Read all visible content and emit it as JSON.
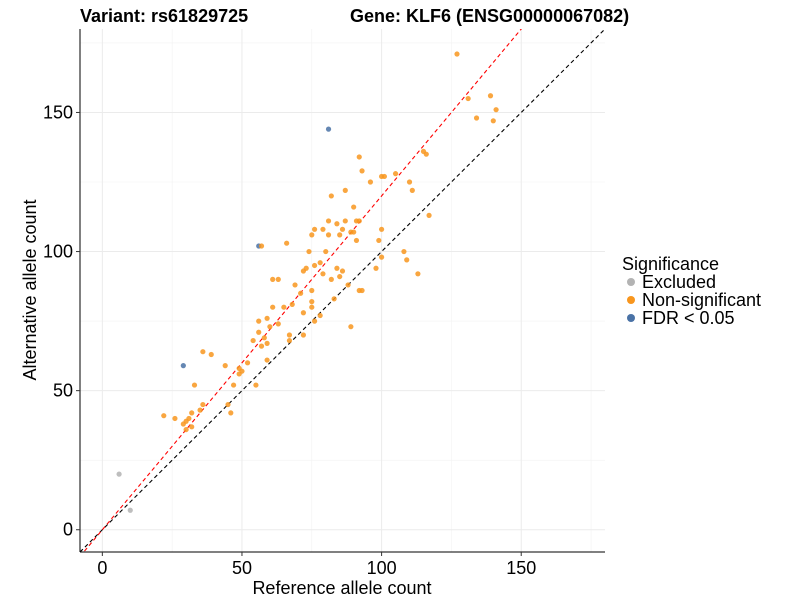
{
  "chart_data": {
    "type": "scatter",
    "title_left": "Variant: rs61829725",
    "title_right": "Gene: KLF6 (ENSG00000067082)",
    "xlabel": "Reference allele count",
    "ylabel": "Alternative allele count",
    "xlim": [
      -8,
      180
    ],
    "ylim": [
      -8,
      180
    ],
    "xticks": [
      0,
      50,
      100,
      150
    ],
    "yticks": [
      0,
      50,
      100,
      150
    ],
    "xtick_labels": [
      "0",
      "50",
      "100",
      "150"
    ],
    "ytick_labels": [
      "0",
      "50",
      "100",
      "150"
    ],
    "grid": true,
    "lines": [
      {
        "name": "identity",
        "slope": 1,
        "intercept": 0,
        "color": "#000000",
        "dash": true
      },
      {
        "name": "fit",
        "slope": 1.2,
        "intercept": 0,
        "color": "#ff0000",
        "dash": true
      }
    ],
    "legend": {
      "title": "Significance",
      "position": "right",
      "entries": [
        {
          "label": "Excluded",
          "color": "#b3b3b3"
        },
        {
          "label": "Non-significant",
          "color": "#f8961e"
        },
        {
          "label": "FDR < 0.05",
          "color": "#4a72a6"
        }
      ]
    },
    "series": [
      {
        "name": "Excluded",
        "color": "#b3b3b3",
        "points": [
          [
            6,
            20
          ],
          [
            10,
            7
          ]
        ]
      },
      {
        "name": "FDR < 0.05",
        "color": "#4a72a6",
        "points": [
          [
            81,
            144
          ],
          [
            56,
            102
          ],
          [
            29,
            59
          ]
        ]
      },
      {
        "name": "Non-significant",
        "color": "#f8961e",
        "points": [
          [
            127,
            171
          ],
          [
            131,
            155
          ],
          [
            139,
            156
          ],
          [
            134,
            148
          ],
          [
            140,
            147
          ],
          [
            141,
            151
          ],
          [
            115,
            136
          ],
          [
            116,
            135
          ],
          [
            92,
            134
          ],
          [
            93,
            129
          ],
          [
            105,
            128
          ],
          [
            100,
            127
          ],
          [
            101,
            127
          ],
          [
            96,
            125
          ],
          [
            110,
            125
          ],
          [
            111,
            122
          ],
          [
            87,
            122
          ],
          [
            82,
            120
          ],
          [
            90,
            116
          ],
          [
            117,
            113
          ],
          [
            81,
            111
          ],
          [
            87,
            111
          ],
          [
            91,
            111
          ],
          [
            92,
            111
          ],
          [
            84,
            110
          ],
          [
            100,
            108
          ],
          [
            76,
            108
          ],
          [
            79,
            108
          ],
          [
            86,
            108
          ],
          [
            75,
            106
          ],
          [
            85,
            106
          ],
          [
            89,
            107
          ],
          [
            90,
            107
          ],
          [
            81,
            106
          ],
          [
            91,
            104
          ],
          [
            99,
            104
          ],
          [
            108,
            100
          ],
          [
            66,
            103
          ],
          [
            57,
            102
          ],
          [
            74,
            100
          ],
          [
            80,
            100
          ],
          [
            78,
            96
          ],
          [
            100,
            98
          ],
          [
            109,
            97
          ],
          [
            76,
            95
          ],
          [
            73,
            94
          ],
          [
            84,
            94
          ],
          [
            86,
            93
          ],
          [
            98,
            94
          ],
          [
            72,
            93
          ],
          [
            85,
            91
          ],
          [
            113,
            92
          ],
          [
            61,
            90
          ],
          [
            63,
            90
          ],
          [
            79,
            92
          ],
          [
            82,
            90
          ],
          [
            69,
            88
          ],
          [
            88,
            88
          ],
          [
            75,
            86
          ],
          [
            71,
            85
          ],
          [
            92,
            86
          ],
          [
            93,
            86
          ],
          [
            83,
            83
          ],
          [
            75,
            82
          ],
          [
            68,
            81
          ],
          [
            61,
            80
          ],
          [
            65,
            80
          ],
          [
            75,
            80
          ],
          [
            72,
            78
          ],
          [
            78,
            77
          ],
          [
            59,
            76
          ],
          [
            56,
            75
          ],
          [
            63,
            74
          ],
          [
            76,
            75
          ],
          [
            60,
            73
          ],
          [
            56,
            71
          ],
          [
            67,
            70
          ],
          [
            72,
            70
          ],
          [
            89,
            73
          ],
          [
            58,
            69
          ],
          [
            54,
            68
          ],
          [
            67,
            68
          ],
          [
            59,
            67
          ],
          [
            57,
            66
          ],
          [
            36,
            64
          ],
          [
            39,
            63
          ],
          [
            59,
            61
          ],
          [
            44,
            59
          ],
          [
            52,
            60
          ],
          [
            49,
            58
          ],
          [
            50,
            57
          ],
          [
            49,
            56
          ],
          [
            47,
            52
          ],
          [
            55,
            52
          ],
          [
            33,
            52
          ],
          [
            36,
            45
          ],
          [
            45,
            45
          ],
          [
            32,
            42
          ],
          [
            35,
            43
          ],
          [
            22,
            41
          ],
          [
            31,
            40
          ],
          [
            26,
            40
          ],
          [
            30,
            39
          ],
          [
            29,
            38
          ],
          [
            46,
            42
          ],
          [
            32,
            37
          ],
          [
            30,
            36
          ]
        ]
      }
    ]
  }
}
